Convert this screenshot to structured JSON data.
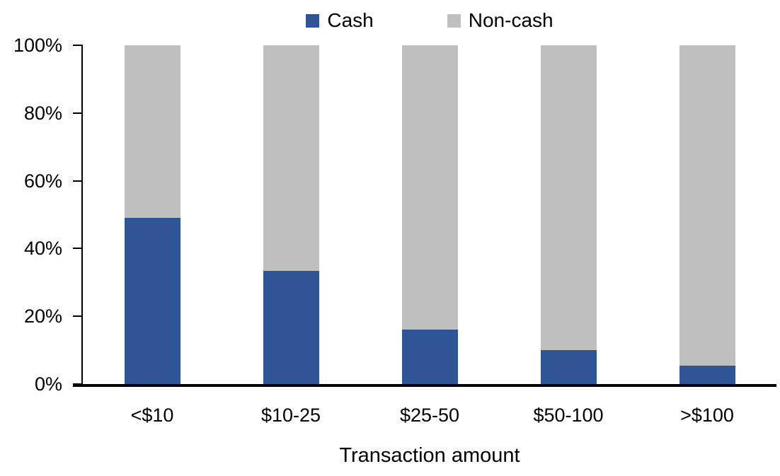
{
  "chart_data": {
    "type": "bar",
    "stacked": true,
    "title": "",
    "xlabel": "Transaction amount",
    "ylabel": "",
    "categories": [
      "<$10",
      "$10-25",
      "$25-50",
      "$50-100",
      ">$100"
    ],
    "series": [
      {
        "name": "Cash",
        "color": "#2F5597",
        "values": [
          49,
          33.5,
          16,
          10,
          5.5
        ]
      },
      {
        "name": "Non-cash",
        "color": "#BFBFBF",
        "values": [
          51,
          66.5,
          84,
          90,
          94.5
        ]
      }
    ],
    "y_axis": {
      "min": 0,
      "max": 100,
      "tick_step": 20,
      "tick_labels": [
        "0%",
        "20%",
        "40%",
        "60%",
        "80%",
        "100%"
      ]
    },
    "legend_position": "top",
    "grid": false,
    "axis_color": "#000000",
    "text_color": "#000000",
    "background_color": "#FFFFFF"
  }
}
